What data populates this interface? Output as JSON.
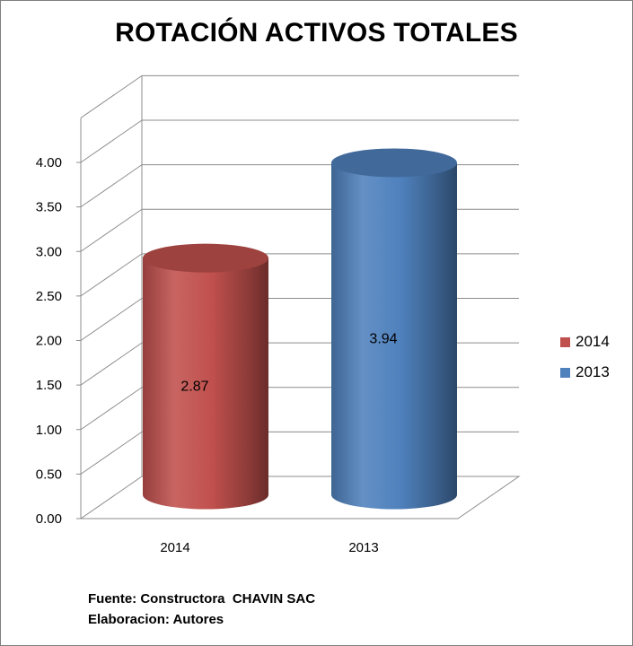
{
  "chart_data": {
    "type": "bar",
    "title": "ROTACIÓN ACTIVOS TOTALES",
    "categories": [
      "2014",
      "2013"
    ],
    "values": [
      2.87,
      3.94
    ],
    "data_labels": [
      "2.87",
      "3.94"
    ],
    "colors": [
      "#c0504d",
      "#4f81bd"
    ],
    "y_ticks": [
      "0.00",
      "0.50",
      "1.00",
      "1.50",
      "2.00",
      "2.50",
      "3.00",
      "3.50",
      "4.00"
    ],
    "ylim": [
      0,
      4
    ],
    "legend": [
      {
        "label": "2014",
        "color": "#c0504d"
      },
      {
        "label": "2013",
        "color": "#4f81bd"
      }
    ],
    "legend_position": "right",
    "grid": true
  },
  "footer": {
    "source": "Fuente: Constructora  CHAVIN SAC",
    "author": "Elaboracion: Autores"
  }
}
